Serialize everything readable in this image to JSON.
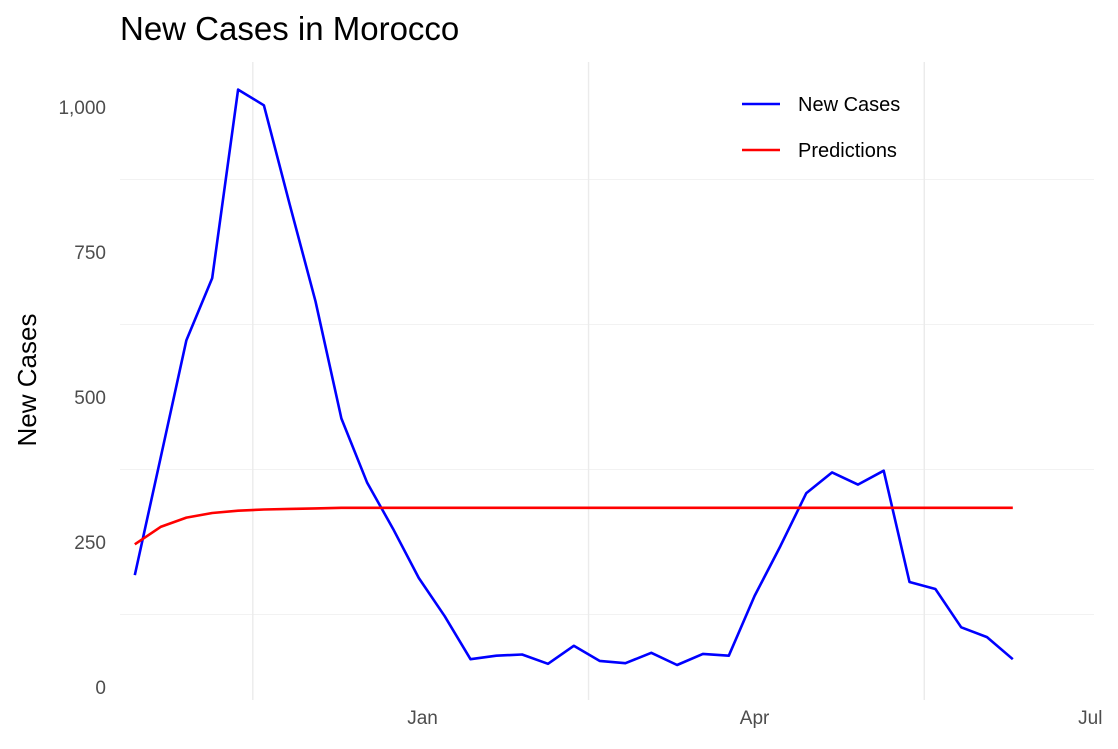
{
  "chart_data": {
    "type": "line",
    "title": "New Cases in Morocco",
    "xlabel": "",
    "ylabel": "New Cases",
    "x_axis": {
      "type": "date",
      "range": [
        "2020-10-11",
        "2021-07-02"
      ],
      "ticks": [
        {
          "date": "2021-01-01",
          "label": "Jan"
        },
        {
          "date": "2021-04-01",
          "label": "Apr"
        },
        {
          "date": "2021-07-01",
          "label": "Jul"
        }
      ],
      "minor_grid": [
        "2020-11-16",
        "2021-02-15",
        "2021-05-17"
      ]
    },
    "y_axis": {
      "range": [
        0,
        1070
      ],
      "ticks": [
        {
          "value": 0,
          "label": "0"
        },
        {
          "value": 250,
          "label": "250"
        },
        {
          "value": 500,
          "label": "500"
        },
        {
          "value": 750,
          "label": "750"
        },
        {
          "value": 1000,
          "label": "1,000"
        }
      ],
      "minor_grid": [
        125,
        375,
        625,
        875
      ]
    },
    "grid": true,
    "legend_position": "top-right",
    "series": [
      {
        "name": "New Cases",
        "color": "#0000ff",
        "points": [
          {
            "x": "2020-10-15",
            "y": 193
          },
          {
            "x": "2020-10-22",
            "y": 395
          },
          {
            "x": "2020-10-29",
            "y": 598
          },
          {
            "x": "2020-11-05",
            "y": 705
          },
          {
            "x": "2020-11-12",
            "y": 1030
          },
          {
            "x": "2020-11-19",
            "y": 1003
          },
          {
            "x": "2020-11-26",
            "y": 832
          },
          {
            "x": "2020-12-03",
            "y": 665
          },
          {
            "x": "2020-12-10",
            "y": 463
          },
          {
            "x": "2020-12-17",
            "y": 352
          },
          {
            "x": "2020-12-24",
            "y": 273
          },
          {
            "x": "2020-12-31",
            "y": 188
          },
          {
            "x": "2021-01-07",
            "y": 122
          },
          {
            "x": "2021-01-14",
            "y": 48
          },
          {
            "x": "2021-01-21",
            "y": 54
          },
          {
            "x": "2021-01-28",
            "y": 56
          },
          {
            "x": "2021-02-04",
            "y": 40
          },
          {
            "x": "2021-02-11",
            "y": 71
          },
          {
            "x": "2021-02-18",
            "y": 45
          },
          {
            "x": "2021-02-25",
            "y": 41
          },
          {
            "x": "2021-03-04",
            "y": 59
          },
          {
            "x": "2021-03-11",
            "y": 38
          },
          {
            "x": "2021-03-18",
            "y": 57
          },
          {
            "x": "2021-03-25",
            "y": 54
          },
          {
            "x": "2021-04-01",
            "y": 157
          },
          {
            "x": "2021-04-08",
            "y": 243
          },
          {
            "x": "2021-04-15",
            "y": 334
          },
          {
            "x": "2021-04-22",
            "y": 370
          },
          {
            "x": "2021-04-29",
            "y": 349
          },
          {
            "x": "2021-05-06",
            "y": 373
          },
          {
            "x": "2021-05-13",
            "y": 181
          },
          {
            "x": "2021-05-20",
            "y": 169
          },
          {
            "x": "2021-05-27",
            "y": 103
          },
          {
            "x": "2021-06-03",
            "y": 86
          },
          {
            "x": "2021-06-10",
            "y": 48
          }
        ]
      },
      {
        "name": "Predictions",
        "color": "#ff0000",
        "points": [
          {
            "x": "2020-10-15",
            "y": 246
          },
          {
            "x": "2020-10-22",
            "y": 276
          },
          {
            "x": "2020-10-29",
            "y": 292
          },
          {
            "x": "2020-11-05",
            "y": 300
          },
          {
            "x": "2020-11-12",
            "y": 304
          },
          {
            "x": "2020-11-19",
            "y": 306
          },
          {
            "x": "2020-11-26",
            "y": 307
          },
          {
            "x": "2020-12-03",
            "y": 308
          },
          {
            "x": "2020-12-10",
            "y": 309
          },
          {
            "x": "2020-12-17",
            "y": 309
          },
          {
            "x": "2021-06-10",
            "y": 309
          }
        ]
      }
    ]
  }
}
